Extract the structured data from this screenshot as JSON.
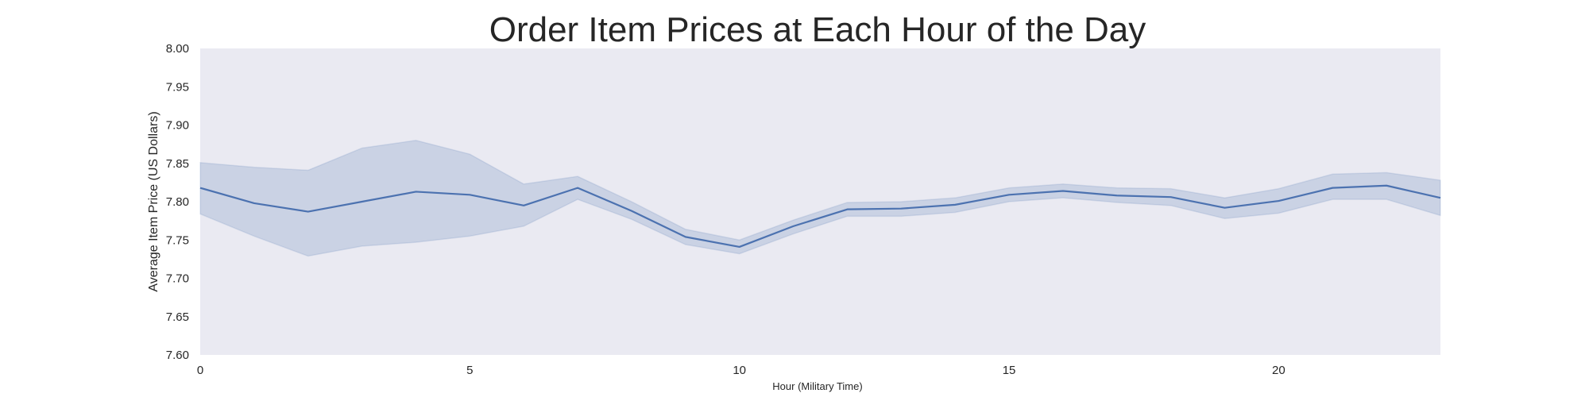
{
  "chart_data": {
    "type": "line",
    "title": "Order Item Prices at Each Hour of the Day",
    "xlabel": "Hour (Military Time)",
    "ylabel": "Average Item Price (US Dollars)",
    "xlim": [
      0,
      23
    ],
    "ylim": [
      7.6,
      8.0
    ],
    "x_ticks": [
      0,
      5,
      10,
      15,
      20
    ],
    "x_tick_labels": [
      "0",
      "5",
      "10",
      "15",
      "20"
    ],
    "y_ticks": [
      7.6,
      7.65,
      7.7,
      7.75,
      7.8,
      7.85,
      7.9,
      7.95,
      8.0
    ],
    "y_tick_labels": [
      "7.60",
      "7.65",
      "7.70",
      "7.75",
      "7.80",
      "7.85",
      "7.90",
      "7.95",
      "8.00"
    ],
    "grid": false,
    "series": [
      {
        "x": [
          0,
          1,
          2,
          3,
          4,
          5,
          6,
          7,
          8,
          9,
          10,
          11,
          12,
          13,
          14,
          15,
          16,
          17,
          18,
          19,
          20,
          21,
          22,
          23
        ],
        "values": [
          7.818,
          7.798,
          7.787,
          7.8,
          7.813,
          7.809,
          7.795,
          7.818,
          7.788,
          7.754,
          7.741,
          7.768,
          7.79,
          7.791,
          7.796,
          7.809,
          7.814,
          7.808,
          7.806,
          7.792,
          7.801,
          7.818,
          7.821,
          7.805
        ],
        "ci_lower": [
          7.784,
          7.755,
          7.729,
          7.742,
          7.747,
          7.755,
          7.768,
          7.803,
          7.777,
          7.744,
          7.732,
          7.758,
          7.781,
          7.781,
          7.786,
          7.8,
          7.805,
          7.799,
          7.795,
          7.778,
          7.785,
          7.803,
          7.803,
          7.782
        ],
        "ci_upper": [
          7.851,
          7.845,
          7.841,
          7.87,
          7.88,
          7.862,
          7.823,
          7.833,
          7.8,
          7.764,
          7.75,
          7.776,
          7.799,
          7.8,
          7.805,
          7.818,
          7.823,
          7.818,
          7.817,
          7.805,
          7.817,
          7.836,
          7.838,
          7.828
        ]
      }
    ]
  },
  "colors": {
    "plot_background": "#eaeaf2",
    "line": "#4c72b0",
    "band": "#4c72b0",
    "text": "#262626"
  }
}
